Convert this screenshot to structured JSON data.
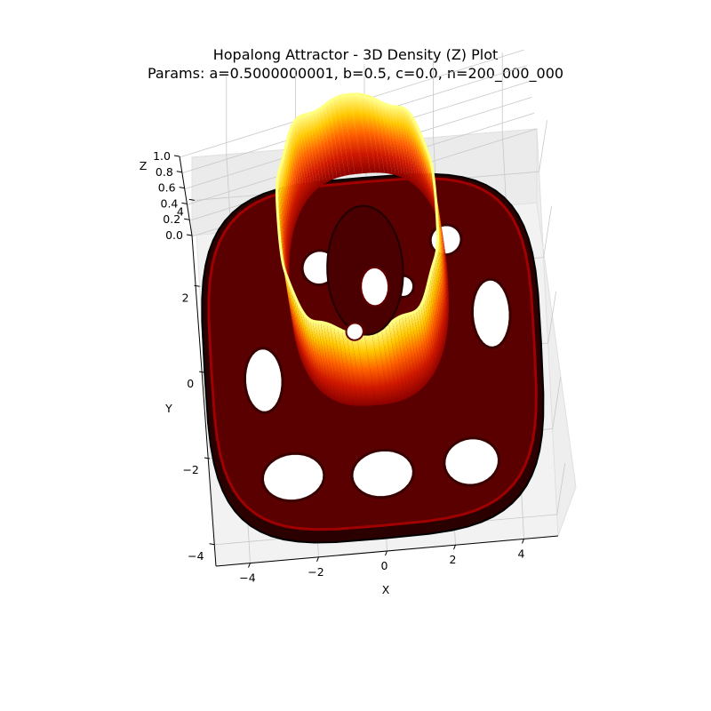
{
  "chart_data": {
    "type": "surface3d",
    "title": "Hopalong Attractor - 3D Density (Z) Plot",
    "subtitle": "Params: a=0.5000000001, b=0.5, c=0.0, n=200_000_000",
    "xlabel": "X",
    "ylabel": "Y",
    "zlabel": "Z",
    "xlim": [
      -5,
      5
    ],
    "ylim": [
      -4.5,
      5
    ],
    "zlim": [
      0,
      1
    ],
    "x_ticks": [
      -4,
      -2,
      0,
      2,
      4
    ],
    "y_ticks": [
      -4,
      -2,
      0,
      2,
      4
    ],
    "z_ticks": [
      0.0,
      0.2,
      0.4,
      0.6,
      0.8,
      1.0
    ],
    "x_tick_labels": [
      "−4",
      "−2",
      "0",
      "2",
      "4"
    ],
    "y_tick_labels": [
      "−4",
      "−2",
      "0",
      "2",
      "4"
    ],
    "z_tick_labels": [
      "0.0",
      "0.2",
      "0.4",
      "0.6",
      "0.8",
      "1.0"
    ],
    "colormap": "hot",
    "colormap_stops": [
      "#000000",
      "#5a0000",
      "#a00000",
      "#e01000",
      "#ff6a00",
      "#ffc000",
      "#ffff60",
      "#ffffe0"
    ],
    "grid": true,
    "pane_color": "#f2f2f2",
    "grid_color": "#c8c8c8",
    "view": "elevated perspective"
  }
}
